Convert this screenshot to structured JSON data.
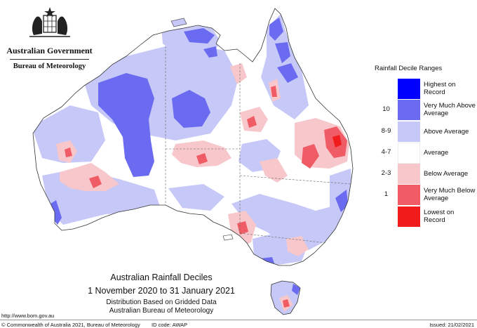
{
  "header": {
    "government": "Australian Government",
    "bureau": "Bureau of Meteorology"
  },
  "legend": {
    "title": "Rainfall Decile Ranges",
    "items": [
      {
        "range": "",
        "label": "Highest on Record",
        "color": "#0000ff"
      },
      {
        "range": "10",
        "label": "Very Much Above Average",
        "color": "#6b6bf2"
      },
      {
        "range": "8-9",
        "label": "Above Average",
        "color": "#c6c8f7"
      },
      {
        "range": "4-7",
        "label": "Average",
        "color": "#ffffff"
      },
      {
        "range": "2-3",
        "label": "Below Average",
        "color": "#f7c7cb"
      },
      {
        "range": "1",
        "label": "Very Much Below Average",
        "color": "#f05c66"
      },
      {
        "range": "",
        "label": "Lowest on Record",
        "color": "#f01b1b"
      }
    ]
  },
  "map_title": {
    "line1": "Australian Rainfall Deciles",
    "line2": "1 November 2020 to 31 January 2021",
    "line3": "Distribution Based on Gridded Data",
    "line4": "Australian Bureau of Meteorology"
  },
  "footer": {
    "url": "http://www.bom.gov.au",
    "copyright": "© Commonwealth of Australia 2021, Bureau of Meteorology",
    "id_code": "ID code: AWAP",
    "issued": "Issued: 21/02/2021"
  }
}
